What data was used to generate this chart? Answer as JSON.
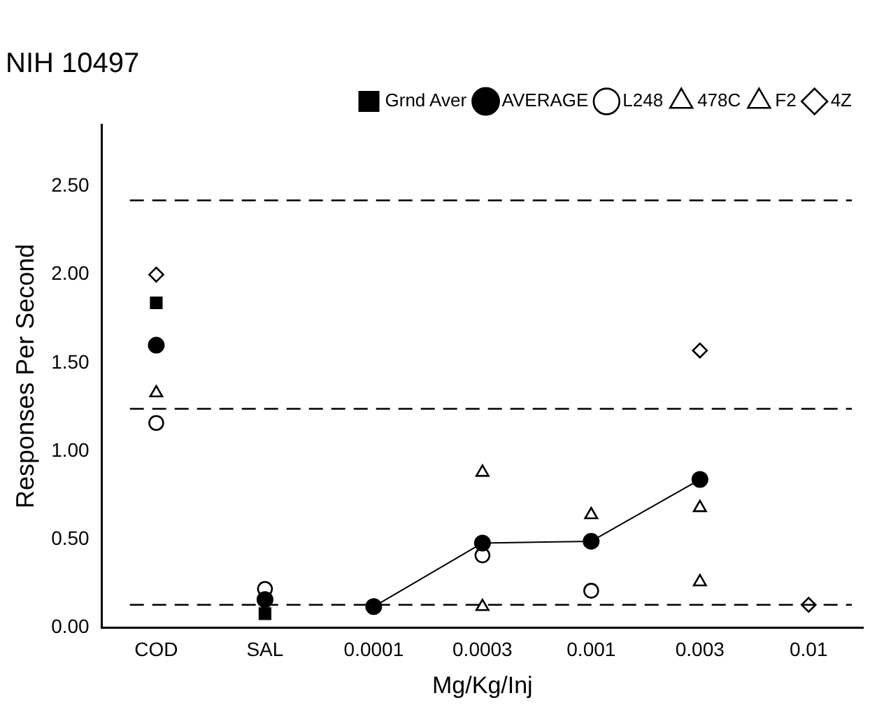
{
  "chart_data": {
    "type": "scatter",
    "title": "NIH 10497",
    "xlabel": "Mg/Kg/Inj",
    "ylabel": "Responses Per Second",
    "categories": [
      "COD",
      "SAL",
      "0.0001",
      "0.0003",
      "0.001",
      "0.003",
      "0.01"
    ],
    "ylim": [
      0,
      2.85
    ],
    "yticks": [
      {
        "value": 0,
        "label": "0.00"
      },
      {
        "value": 0.5,
        "label": "0.50"
      },
      {
        "value": 1,
        "label": "1.00"
      },
      {
        "value": 1.5,
        "label": "1.50"
      },
      {
        "value": 2,
        "label": "2.00"
      },
      {
        "value": 2.5,
        "label": "2.50"
      }
    ],
    "grid": false,
    "legend": "top right",
    "ref_lines": [
      {
        "axis": "y",
        "value": 2.42,
        "line_style": "dashed"
      },
      {
        "axis": "y",
        "value": 1.24,
        "line_style": "dashed"
      },
      {
        "axis": "y",
        "value": 0.13,
        "line_style": "dashed"
      }
    ],
    "series": [
      {
        "name": "Grnd Aver",
        "marker": "square",
        "color": "#000000",
        "values": [
          1.84,
          0.08,
          null,
          null,
          null,
          null,
          null
        ]
      },
      {
        "name": "AVERAGE",
        "type": "line",
        "marker": "circle",
        "color": "#000000",
        "values": [
          null,
          null,
          0.12,
          0.48,
          0.49,
          0.84,
          null
        ]
      },
      {
        "marker": "circle",
        "color": "#000000",
        "values": [
          1.6,
          0.16,
          null,
          null,
          null,
          null,
          null
        ]
      },
      {
        "name": "L248",
        "marker": "circle",
        "color": "#000000",
        "values": [
          1.16,
          0.22,
          null,
          0.41,
          0.21,
          null,
          null
        ]
      },
      {
        "name": "478C",
        "marker": "triangle",
        "color": "#000000",
        "values": [
          1.33,
          null,
          null,
          0.88,
          0.64,
          0.68,
          null
        ]
      },
      {
        "name": "F2",
        "marker": "triangle",
        "color": "#000000",
        "values": [
          null,
          null,
          null,
          0.12,
          null,
          0.26,
          null
        ]
      },
      {
        "name": "4Z",
        "marker": "diamond",
        "color": "#000000",
        "values": [
          2.0,
          null,
          null,
          null,
          null,
          1.57,
          0.13
        ]
      }
    ]
  }
}
